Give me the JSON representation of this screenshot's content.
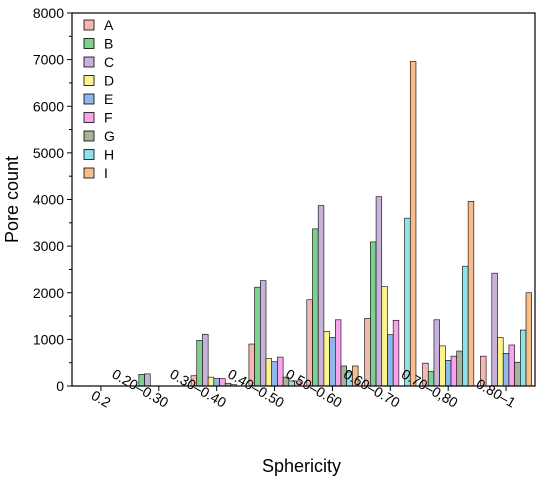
{
  "chart_data": {
    "type": "bar",
    "xlabel": "Sphericity",
    "ylabel": "Pore count",
    "ylim": [
      0,
      8000
    ],
    "yticks": [
      0,
      1000,
      2000,
      3000,
      4000,
      5000,
      6000,
      7000,
      8000
    ],
    "categories": [
      "0.2",
      "0.20–0.30",
      "0.30–0.40",
      "0.40–0.50",
      "0.50–0.60",
      "0.60–0.70",
      "0.70–0,80",
      "0.80–1"
    ],
    "legend_position": "top-left",
    "grid": false,
    "series": [
      {
        "name": "A",
        "color": "#f6b7b3",
        "values": [
          0,
          0,
          220,
          900,
          1850,
          1450,
          490,
          640
        ]
      },
      {
        "name": "B",
        "color": "#7ed08e",
        "values": [
          0,
          250,
          980,
          2120,
          3370,
          3090,
          310,
          0
        ]
      },
      {
        "name": "C",
        "color": "#c8b2db",
        "values": [
          0,
          260,
          1110,
          2260,
          3870,
          4060,
          1420,
          2420
        ]
      },
      {
        "name": "D",
        "color": "#fbf38d",
        "values": [
          0,
          0,
          190,
          590,
          1170,
          2130,
          860,
          1040
        ]
      },
      {
        "name": "E",
        "color": "#8fb8ec",
        "values": [
          0,
          0,
          160,
          520,
          1040,
          1100,
          550,
          700
        ]
      },
      {
        "name": "F",
        "color": "#f8a3ec",
        "values": [
          0,
          0,
          160,
          620,
          1420,
          1410,
          640,
          880
        ]
      },
      {
        "name": "G",
        "color": "#a7b59a",
        "values": [
          0,
          0,
          60,
          190,
          430,
          0,
          750,
          510
        ]
      },
      {
        "name": "H",
        "color": "#8fe3e8",
        "values": [
          0,
          0,
          30,
          110,
          300,
          3600,
          2570,
          1200
        ]
      },
      {
        "name": "I",
        "color": "#f7bd8c",
        "values": [
          0,
          0,
          0,
          110,
          430,
          6960,
          3960,
          2000
        ]
      }
    ]
  }
}
